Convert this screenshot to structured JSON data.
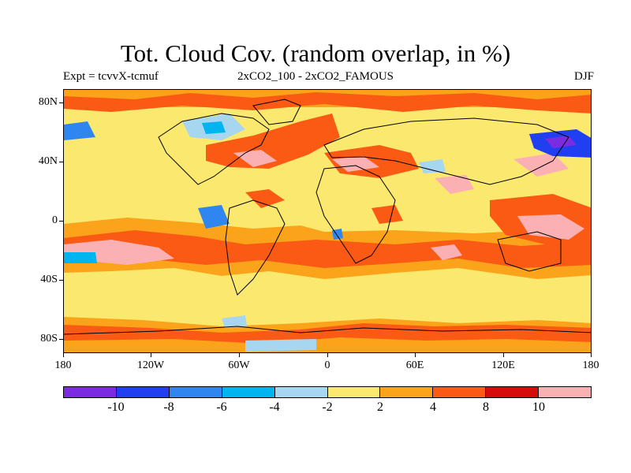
{
  "title": "Tot. Cloud Cov. (random overlap, in %)",
  "subtitle_left": "Expt = tcvvX-tcmuf",
  "subtitle_center": "2xCO2_100 - 2xCO2_FAMOUS",
  "subtitle_right": "DJF",
  "lat_labels": [
    "80N",
    "40N",
    "0",
    "40S",
    "80S"
  ],
  "lon_labels": [
    "180",
    "120W",
    "60W",
    "0",
    "60E",
    "120E",
    "180"
  ],
  "colorbar": {
    "colors": [
      "#7b2be0",
      "#1f3ff0",
      "#2f86f0",
      "#00b4f0",
      "#a6d6f0",
      "#fbe86e",
      "#fba31a",
      "#fb5a14",
      "#d60c0c",
      "#fbb1b4"
    ],
    "labels": [
      "-10",
      "-8",
      "-6",
      "-4",
      "-2",
      "2",
      "4",
      "8",
      "10"
    ]
  },
  "palette": {
    "background_field": "#fbe86e",
    "coastline": "#000000"
  }
}
